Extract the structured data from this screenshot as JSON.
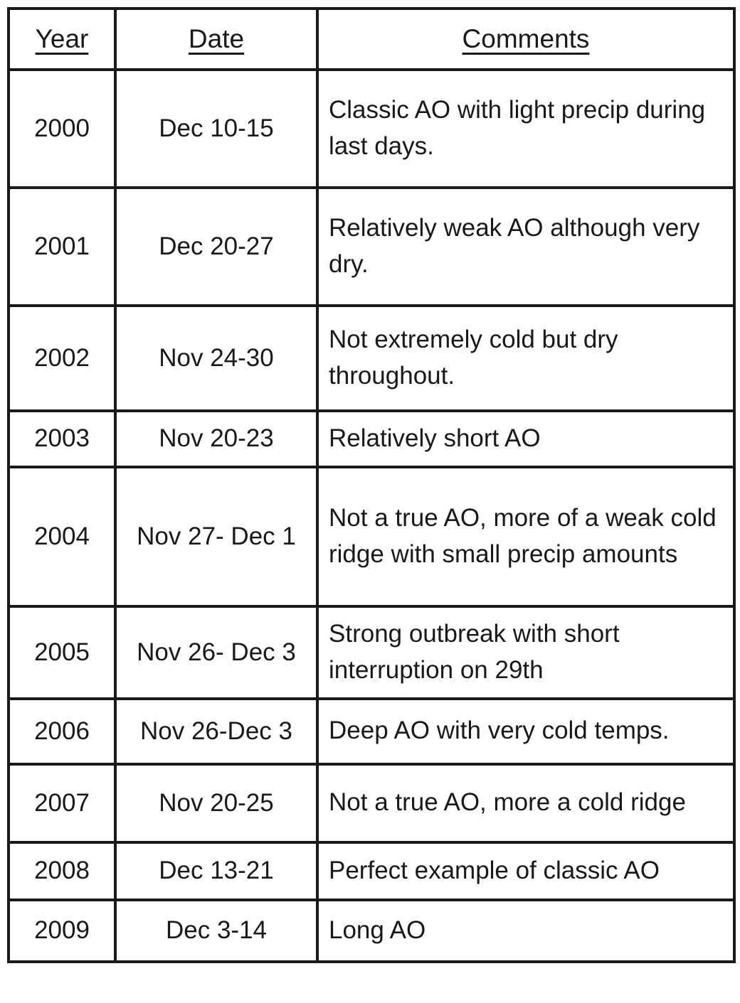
{
  "table": {
    "headers": {
      "year": "Year",
      "date": "Date",
      "comments": "Comments"
    },
    "rows": [
      {
        "year": "2000",
        "date": "Dec 10-15",
        "comment": "Classic AO with light precip during last days."
      },
      {
        "year": "2001",
        "date": "Dec 20-27",
        "comment": "Relatively weak AO although very dry."
      },
      {
        "year": "2002",
        "date": "Nov 24-30",
        "comment": "Not extremely cold but dry throughout."
      },
      {
        "year": "2003",
        "date": "Nov 20-23",
        "comment": "Relatively short AO"
      },
      {
        "year": "2004",
        "date": "Nov 27- Dec 1",
        "comment": "Not a true AO, more of a weak cold ridge with small precip amounts"
      },
      {
        "year": "2005",
        "date": "Nov 26- Dec 3",
        "comment": "Strong outbreak with short interruption on 29th"
      },
      {
        "year": "2006",
        "date": "Nov 26-Dec 3",
        "comment": "Deep AO with very cold temps."
      },
      {
        "year": "2007",
        "date": "Nov 20-25",
        "comment": "Not a true AO, more a cold ridge"
      },
      {
        "year": "2008",
        "date": "Dec 13-21",
        "comment": "Perfect example of classic AO"
      },
      {
        "year": "2009",
        "date": "Dec 3-14",
        "comment": "Long AO"
      }
    ],
    "colors": {
      "border": "#191919",
      "text": "#191919",
      "background": "#ffffff"
    }
  }
}
